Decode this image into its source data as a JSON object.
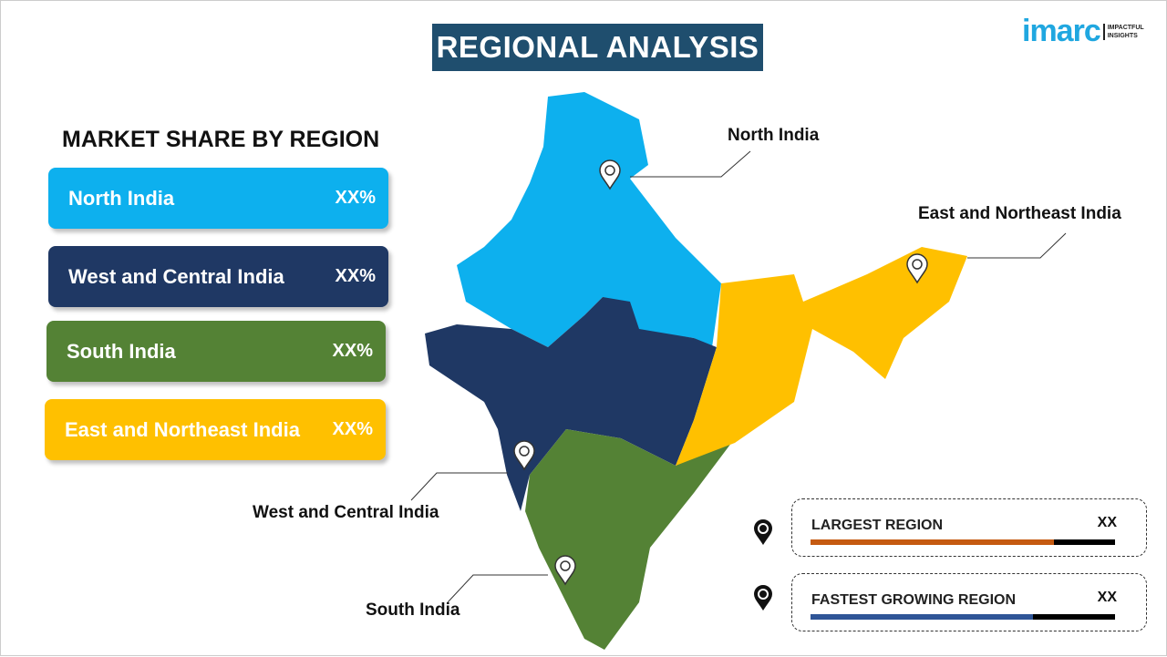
{
  "title": "REGIONAL ANALYSIS",
  "logo": {
    "word": "imarc",
    "tag_line1": "IMPACTFUL",
    "tag_line2": "INSIGHTS"
  },
  "subtitle": "MARKET SHARE BY REGION",
  "regions": [
    {
      "label": "North India",
      "value": "XX%",
      "color": "#0db0ee"
    },
    {
      "label": "West and Central India",
      "value": "XX%",
      "color": "#1f3864"
    },
    {
      "label": "South India",
      "value": "XX%",
      "color": "#548235"
    },
    {
      "label": "East and Northeast India",
      "value": "XX%",
      "color": "#ffc000"
    }
  ],
  "map_labels": {
    "north": "North India",
    "east": "East and Northeast India",
    "west": "West and Central India",
    "south": "South India"
  },
  "legend": [
    {
      "label": "LARGEST REGION",
      "value": "XX",
      "bar_color": "#c55a11",
      "fill_fraction": 0.8
    },
    {
      "label": "FASTEST  GROWING REGION",
      "value": "XX",
      "bar_color": "#2f5597",
      "fill_fraction": 0.73
    }
  ]
}
